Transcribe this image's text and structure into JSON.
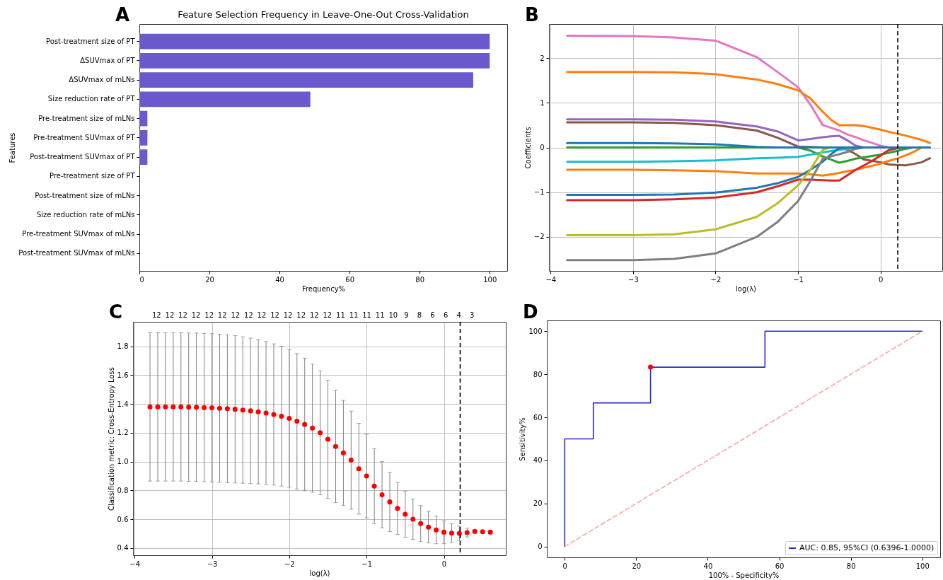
{
  "chart_data": [
    {
      "type": "bar",
      "orientation": "horizontal",
      "title": "Feature Selection Frequency in Leave-One-Out Cross-Validation",
      "xlabel": "Frequency%",
      "ylabel": "Features",
      "annotations": [
        "A"
      ],
      "categories": [
        "Post-treatment size of PT",
        "ΔSUVmax of PT",
        "ΔSUVmax of mLNs",
        "Size reduction rate of PT",
        "Pre-treatment size of mLNs",
        "Pre-treatment SUVmax of PT",
        "Post-treatment SUVmax of PT",
        "Pre-treatment size of PT",
        "Post-treatment size of mLNs",
        "Size reduction rate of mLNs",
        "Pre-treatment SUVmax of mLNs",
        "Post-treatment SUVmax of mLNs"
      ],
      "values": [
        100,
        100,
        95.3,
        48.8,
        2.3,
        2.3,
        2.3,
        0,
        0,
        0,
        0,
        0
      ],
      "color": "#6a5acd",
      "xlim": [
        0,
        105
      ],
      "xticks": [
        0,
        20,
        40,
        60,
        80,
        100
      ],
      "grid": false
    },
    {
      "type": "line",
      "xlabel": "log(λ)",
      "ylabel": "Coefficients",
      "annotations": [
        "B"
      ],
      "grid": true,
      "legend": false,
      "xlim": [
        -4.02,
        0.75
      ],
      "xticks": [
        -4,
        -3,
        -2,
        -1,
        0
      ],
      "ylim": [
        -2.76,
        2.76
      ],
      "yticks": [
        -2,
        -1,
        0,
        1,
        2
      ],
      "x": [
        -3.8,
        -3,
        -2.5,
        -2,
        -1.5,
        -1.25,
        -1,
        -0.85,
        -0.7,
        -0.6,
        -0.5,
        -0.4,
        -0.3,
        -0.2,
        -0.1,
        0,
        0.1,
        0.2,
        0.3,
        0.4,
        0.5,
        0.6
      ],
      "series": [
        {
          "color": "#e377c2",
          "values": [
            2.5,
            2.49,
            2.46,
            2.39,
            2.02,
            1.69,
            1.35,
            0.96,
            0.5,
            0.44,
            0.38,
            0.29,
            0.23,
            0.16,
            0.1,
            0.04,
            0,
            null,
            null,
            null,
            null,
            null
          ]
        },
        {
          "color": "#ff7f0e",
          "values": [
            1.69,
            1.69,
            1.68,
            1.64,
            1.52,
            1.42,
            1.28,
            1.1,
            0.8,
            0.62,
            0.5,
            0.5,
            0.5,
            0.48,
            0.44,
            0.4,
            0.35,
            0.31,
            0.27,
            0.22,
            0.17,
            0.1
          ]
        },
        {
          "color": "#9467bd",
          "values": [
            0.63,
            0.63,
            0.62,
            0.58,
            0.47,
            0.36,
            0.16,
            0.19,
            0.23,
            0.25,
            0.26,
            0.16,
            0.04,
            0,
            null,
            null,
            null,
            null,
            null,
            null,
            null,
            null
          ]
        },
        {
          "color": "#8c564b",
          "values": [
            0.56,
            0.56,
            0.55,
            0.5,
            0.38,
            0.22,
            0.02,
            0.01,
            0,
            null,
            0,
            -0.05,
            -0.15,
            -0.27,
            -0.3,
            -0.33,
            -0.38,
            -0.39,
            -0.4,
            -0.37,
            -0.33,
            -0.24
          ]
        },
        {
          "color": "#2ca02c",
          "values": [
            0,
            0,
            0,
            0,
            0,
            null,
            0,
            -0.07,
            -0.2,
            -0.27,
            -0.34,
            -0.3,
            -0.25,
            -0.22,
            -0.19,
            -0.16,
            -0.12,
            -0.08,
            -0.03,
            0,
            null,
            null
          ]
        },
        {
          "color": "#17becf",
          "values": [
            -0.32,
            -0.32,
            -0.31,
            -0.29,
            -0.24,
            -0.23,
            -0.21,
            -0.16,
            -0.11,
            -0.08,
            -0.05,
            -0.03,
            -0.01,
            0,
            null,
            null,
            null,
            null,
            null,
            null,
            null,
            null
          ]
        },
        {
          "color": "#ff7f0e",
          "values": [
            -0.5,
            -0.5,
            -0.51,
            -0.53,
            -0.58,
            -0.58,
            -0.58,
            -0.6,
            -0.63,
            -0.6,
            -0.57,
            -0.53,
            -0.5,
            -0.45,
            -0.41,
            -0.36,
            -0.3,
            -0.25,
            -0.18,
            -0.1,
            0,
            null
          ]
        },
        {
          "color": "#d62728",
          "values": [
            -1.18,
            -1.18,
            -1.16,
            -1.12,
            -1,
            -0.87,
            -0.72,
            -0.72,
            -0.73,
            -0.74,
            -0.74,
            -0.62,
            -0.5,
            -0.4,
            -0.3,
            -0.18,
            -0.06,
            -0.02,
            0,
            null,
            null,
            null
          ]
        },
        {
          "color": "#1f77b4",
          "values": [
            -1.06,
            -1.06,
            -1.05,
            -1.01,
            -0.9,
            -0.8,
            -0.66,
            -0.5,
            -0.32,
            -0.15,
            -0.02,
            0,
            null,
            null,
            null,
            null,
            null,
            null,
            null,
            null,
            null,
            null
          ]
        },
        {
          "color": "#bcbd22",
          "values": [
            -1.96,
            -1.96,
            -1.94,
            -1.83,
            -1.55,
            -1.25,
            -0.85,
            -0.5,
            -0.05,
            0,
            null,
            null,
            null,
            null,
            null,
            null,
            null,
            null,
            null,
            null,
            null,
            null
          ]
        },
        {
          "color": "#7f7f7f",
          "values": [
            -2.52,
            -2.52,
            -2.49,
            -2.37,
            -2,
            -1.67,
            -1.2,
            -0.75,
            -0.25,
            -0.2,
            -0.15,
            -0.1,
            -0.03,
            0,
            null,
            null,
            null,
            null,
            null,
            null,
            null,
            null
          ]
        },
        {
          "color": "#1f77b4",
          "values": [
            0.1,
            0.1,
            0.09,
            0.07,
            0.01,
            0,
            0,
            0,
            0,
            0,
            0,
            0,
            0,
            0,
            0,
            0,
            0,
            0,
            0,
            0,
            0,
            0
          ]
        }
      ],
      "ref_lines": [
        {
          "axis": "x",
          "value": 0.21,
          "color": "#000000",
          "line_style": "dashed"
        }
      ]
    },
    {
      "type": "scatter",
      "xlabel": "log(λ)",
      "ylabel": "Classification metric: Cross-Entropy Loss",
      "grid": true,
      "marker": "circle",
      "color": "#ff0000",
      "xlim": [
        -4.02,
        0.8
      ],
      "xticks": [
        -4,
        -3,
        -2,
        -1,
        0
      ],
      "ylim": [
        0.35,
        1.97
      ],
      "yticks": [
        0.4,
        0.6,
        0.8,
        {
          "value": 1,
          "label": "1.0"
        },
        1.2,
        1.4,
        1.6,
        1.8
      ],
      "annotations": [
        "C",
        "12",
        "12",
        "12",
        "12",
        "12",
        "12",
        "12",
        "12",
        "12",
        "12",
        "12",
        "12",
        "12",
        "12",
        "11",
        "11",
        "11",
        "11",
        "10",
        "9",
        "8",
        "6",
        "6",
        "4",
        "3"
      ],
      "x": [
        -3.8,
        -3.7,
        -3.6,
        -3.5,
        -3.4,
        -3.3,
        -3.2,
        -3.1,
        -3.0,
        -2.9,
        -2.8,
        -2.7,
        -2.6,
        -2.5,
        -2.4,
        -2.3,
        -2.2,
        -2.1,
        -2.0,
        -1.9,
        -1.8,
        -1.7,
        -1.6,
        -1.5,
        -1.4,
        -1.3,
        -1.2,
        -1.1,
        -1.0,
        -0.9,
        -0.8,
        -0.7,
        -0.6,
        -0.5,
        -0.4,
        -0.3,
        -0.2,
        -0.1,
        0,
        0.1,
        0.2,
        0.3,
        0.4,
        0.5,
        0.6
      ],
      "values": [
        1.38,
        1.38,
        1.38,
        1.38,
        1.38,
        1.378,
        1.377,
        1.375,
        1.373,
        1.37,
        1.367,
        1.363,
        1.358,
        1.352,
        1.345,
        1.337,
        1.327,
        1.315,
        1.3,
        1.28,
        1.258,
        1.232,
        1.2,
        1.155,
        1.105,
        1.06,
        1.01,
        0.95,
        0.9,
        0.83,
        0.77,
        0.72,
        0.675,
        0.635,
        0.6,
        0.57,
        0.545,
        0.525,
        0.51,
        0.503,
        0.502,
        0.507,
        0.515,
        0.513,
        0.51
      ],
      "errors": [
        0.515,
        0.515,
        0.515,
        0.515,
        0.515,
        0.515,
        0.515,
        0.515,
        0.515,
        0.514,
        0.513,
        0.511,
        0.508,
        0.505,
        0.5,
        0.496,
        0.49,
        0.485,
        0.478,
        0.47,
        0.46,
        0.445,
        0.43,
        0.41,
        0.39,
        0.365,
        0.34,
        0.315,
        0.29,
        0.26,
        0.23,
        0.205,
        0.18,
        0.16,
        0.14,
        0.125,
        0.11,
        0.095,
        0.08,
        0.065,
        0.05,
        0.03,
        null,
        null,
        null
      ],
      "ref_lines": [
        {
          "axis": "x",
          "value": 0.21,
          "color": "#000000",
          "line_style": "dashed"
        }
      ]
    },
    {
      "type": "line",
      "xlabel": "100% - Specificity%",
      "ylabel": "Sensitivity%",
      "annotations": [
        "D"
      ],
      "grid": false,
      "legend": "bottom right",
      "xlim": [
        -5,
        105
      ],
      "xticks": [
        0,
        20,
        40,
        60,
        80,
        100
      ],
      "ylim": [
        -5,
        105
      ],
      "yticks": [
        0,
        20,
        40,
        60,
        80,
        100
      ],
      "series": [
        {
          "name": "AUC: 0.85, 95%CI (0.6396-1.0000)",
          "color": "#2a2ad4",
          "x": [
            0,
            0,
            8,
            8,
            24,
            24,
            56,
            56,
            100
          ],
          "values": [
            0,
            50,
            50,
            66.7,
            66.7,
            83.3,
            83.3,
            100,
            100
          ]
        },
        {
          "color": "#f8a5a0",
          "line_style": "dashed",
          "x": [
            0,
            100
          ],
          "values": [
            0,
            100
          ]
        },
        {
          "type": "scatter",
          "color": "#ff0000",
          "x": [
            24
          ],
          "values": [
            83.3
          ]
        }
      ]
    }
  ]
}
